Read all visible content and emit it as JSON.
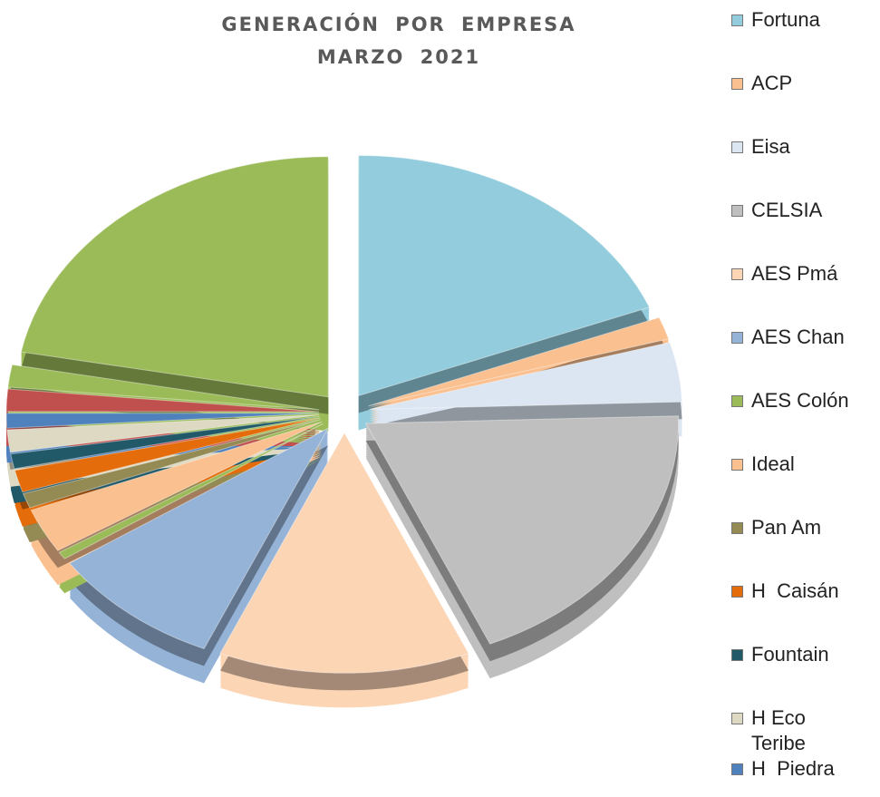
{
  "chart_data": {
    "type": "pie3d",
    "title": "GENERACIÓN POR EMPRESA",
    "subtitle": "MARZO 2021",
    "categories": [
      "Fortuna",
      "ACP",
      "Eisa",
      "CELSIA",
      "AES Pmá",
      "AES Chan",
      "AES Colón",
      "Ideal",
      "Pan Am",
      "H  Caisán",
      "Fountain",
      "H Eco Teribe",
      "H  Piedra",
      null,
      null,
      null
    ],
    "values": [
      19,
      1.5,
      4,
      19,
      13,
      9,
      0.5,
      3,
      1,
      1.5,
      1,
      1.5,
      1,
      1.5,
      1.5,
      22
    ],
    "colors": [
      "#93cddd",
      "#fac090",
      "#dce6f2",
      "#bfbfbf",
      "#fcd5b5",
      "#95b3d7",
      "#9bbb59",
      "#fac090",
      "#948a54",
      "#e46c0a",
      "#215968",
      "#ddd9c3",
      "#4f81bd",
      "#c0504d",
      "#9bbb59",
      "#9bbb59"
    ],
    "legend": "right"
  }
}
